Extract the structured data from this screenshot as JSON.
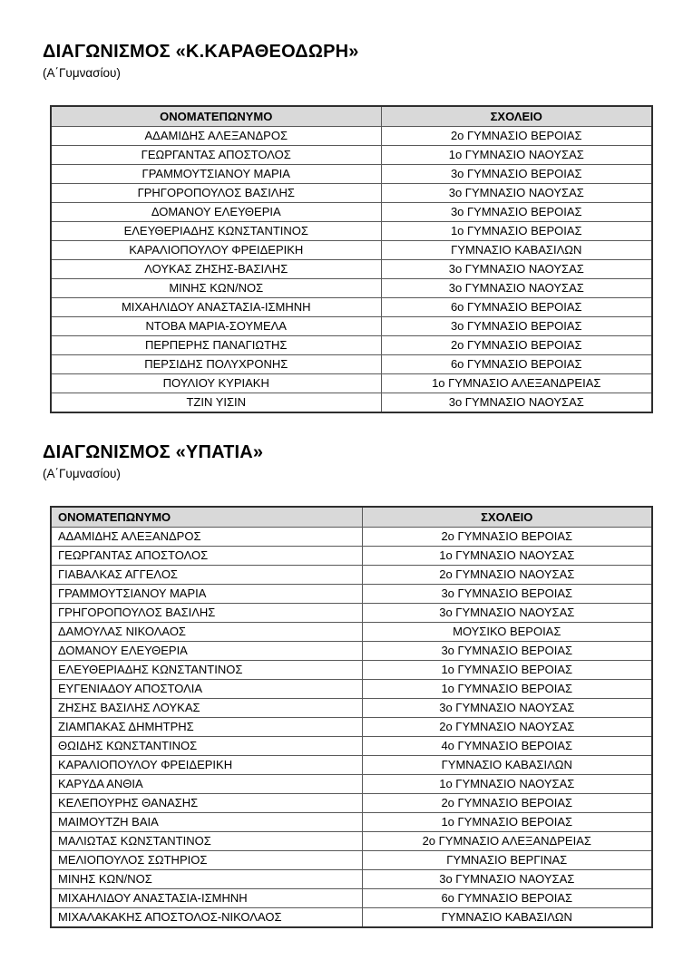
{
  "colors": {
    "header_bg": "#d9d9d9",
    "border": "#595959",
    "outer_border": "#2e2e2e",
    "page_bg": "#ffffff",
    "text": "#000000"
  },
  "sections": [
    {
      "title": "ΔΙΑΓΩΝΙΣΜΟΣ «Κ.ΚΑΡΑΘΕΟΔΩΡΗ»",
      "subtitle": "(Α΄Γυμνασίου)",
      "table": {
        "headers": [
          "ΟΝΟΜΑΤΕΠΩΝΥΜΟ",
          "ΣΧΟΛΕΙΟ"
        ],
        "rows": [
          [
            "ΑΔΑΜΙΔΗΣ ΑΛΕΞΑΝΔΡΟΣ",
            "2ο ΓΥΜΝΑΣΙΟ ΒΕΡΟΙΑΣ"
          ],
          [
            "ΓΕΩΡΓΑΝΤΑΣ ΑΠΟΣΤΟΛΟΣ",
            "1ο ΓΥΜΝΑΣΙΟ ΝΑΟΥΣΑΣ"
          ],
          [
            "ΓΡΑΜΜΟΥΤΣΙΑΝΟΥ ΜΑΡΙΑ",
            "3ο ΓΥΜΝΑΣΙΟ ΒΕΡΟΙΑΣ"
          ],
          [
            "ΓΡΗΓΟΡΟΠΟΥΛΟΣ ΒΑΣΙΛΗΣ",
            "3ο ΓΥΜΝΑΣΙΟ ΝΑΟΥΣΑΣ"
          ],
          [
            "ΔΟΜΑΝΟΥ ΕΛΕΥΘΕΡΙΑ",
            "3ο ΓΥΜΝΑΣΙΟ ΒΕΡΟΙΑΣ"
          ],
          [
            "ΕΛΕΥΘΕΡΙΑΔΗΣ ΚΩΝΣΤΑΝΤΙΝΟΣ",
            "1ο ΓΥΜΝΑΣΙΟ ΒΕΡΟΙΑΣ"
          ],
          [
            "ΚΑΡΑΛΙΟΠΟΥΛΟΥ ΦΡΕΙΔΕΡΙΚΗ",
            "ΓΥΜΝΑΣΙΟ ΚΑΒΑΣΙΛΩΝ"
          ],
          [
            "ΛΟΥΚΑΣ ΖΗΣΗΣ-ΒΑΣΙΛΗΣ",
            "3ο ΓΥΜΝΑΣΙΟ ΝΑΟΥΣΑΣ"
          ],
          [
            "ΜΙΝΗΣ ΚΩΝ/ΝΟΣ",
            "3ο ΓΥΜΝΑΣΙΟ ΝΑΟΥΣΑΣ"
          ],
          [
            "ΜΙΧΑΗΛΙΔΟΥ ΑΝΑΣΤΑΣΙΑ-ΙΣΜΗΝΗ",
            "6ο ΓΥΜΝΑΣΙΟ ΒΕΡΟΙΑΣ"
          ],
          [
            "ΝΤΟΒΑ ΜΑΡΙΑ-ΣΟΥΜΕΛΑ",
            "3ο ΓΥΜΝΑΣΙΟ ΒΕΡΟΙΑΣ"
          ],
          [
            "ΠΕΡΠΕΡΗΣ ΠΑΝΑΓΙΩΤΗΣ",
            "2ο ΓΥΜΝΑΣΙΟ ΒΕΡΟΙΑΣ"
          ],
          [
            "ΠΕΡΣΙΔΗΣ ΠΟΛΥΧΡΟΝΗΣ",
            "6ο ΓΥΜΝΑΣΙΟ ΒΕΡΟΙΑΣ"
          ],
          [
            "ΠΟΥΛΙΟΥ ΚΥΡΙΑΚΗ",
            "1ο ΓΥΜΝΑΣΙΟ ΑΛΕΞΑΝΔΡΕΙΑΣ"
          ],
          [
            "ΤΖΙΝ ΥΙΣΙΝ",
            "3ο ΓΥΜΝΑΣΙΟ ΝΑΟΥΣΑΣ"
          ]
        ]
      }
    },
    {
      "title": "ΔΙΑΓΩΝΙΣΜΟΣ «ΥΠΑΤΙΑ»",
      "subtitle": "(Α΄Γυμνασίου)",
      "table": {
        "headers": [
          "ΟΝΟΜΑΤΕΠΩΝΥΜΟ",
          "ΣΧΟΛΕΙΟ"
        ],
        "rows": [
          [
            "ΑΔΑΜΙΔΗΣ ΑΛΕΞΑΝΔΡΟΣ",
            "2ο ΓΥΜΝΑΣΙΟ ΒΕΡΟΙΑΣ"
          ],
          [
            "ΓΕΩΡΓΑΝΤΑΣ ΑΠΟΣΤΟΛΟΣ",
            "1ο ΓΥΜΝΑΣΙΟ ΝΑΟΥΣΑΣ"
          ],
          [
            "ΓΙΑΒΑΛΚΑΣ ΑΓΓΕΛΟΣ",
            "2ο ΓΥΜΝΑΣΙΟ ΝΑΟΥΣΑΣ"
          ],
          [
            "ΓΡΑΜΜΟΥΤΣΙΑΝΟΥ ΜΑΡΙΑ",
            "3ο ΓΥΜΝΑΣΙΟ ΒΕΡΟΙΑΣ"
          ],
          [
            "ΓΡΗΓΟΡΟΠΟΥΛΟΣ ΒΑΣΙΛΗΣ",
            "3ο ΓΥΜΝΑΣΙΟ ΝΑΟΥΣΑΣ"
          ],
          [
            "ΔΑΜΟΥΛΑΣ ΝΙΚΟΛΑΟΣ",
            "ΜΟΥΣΙΚΟ ΒΕΡΟΙΑΣ"
          ],
          [
            "ΔΟΜΑΝΟΥ ΕΛΕΥΘΕΡΙΑ",
            "3ο ΓΥΜΝΑΣΙΟ ΒΕΡΟΙΑΣ"
          ],
          [
            "ΕΛΕΥΘΕΡΙΑΔΗΣ ΚΩΝΣΤΑΝΤΙΝΟΣ",
            "1ο ΓΥΜΝΑΣΙΟ ΒΕΡΟΙΑΣ"
          ],
          [
            "ΕΥΓΕΝΙΑΔΟΥ ΑΠΟΣΤΟΛΙΑ",
            "1ο ΓΥΜΝΑΣΙΟ ΒΕΡΟΙΑΣ"
          ],
          [
            "ΖΗΣΗΣ ΒΑΣΙΛΗΣ ΛΟΥΚΑΣ",
            "3ο ΓΥΜΝΑΣΙΟ ΝΑΟΥΣΑΣ"
          ],
          [
            "ΖΙΑΜΠΑΚΑΣ ΔΗΜΗΤΡΗΣ",
            "2ο ΓΥΜΝΑΣΙΟ ΝΑΟΥΣΑΣ"
          ],
          [
            "ΘΩΙΔΗΣ ΚΩΝΣΤΑΝΤΙΝΟΣ",
            "4ο ΓΥΜΝΑΣΙΟ ΒΕΡΟΙΑΣ"
          ],
          [
            "ΚΑΡΑΛΙΟΠΟΥΛΟΥ ΦΡΕΙΔΕΡΙΚΗ",
            "ΓΥΜΝΑΣΙΟ ΚΑΒΑΣΙΛΩΝ"
          ],
          [
            "ΚΑΡΥΔΑ ΑΝΘΙΑ",
            "1ο ΓΥΜΝΑΣΙΟ ΝΑΟΥΣΑΣ"
          ],
          [
            "ΚΕΛΕΠΟΥΡΗΣ ΘΑΝΑΣΗΣ",
            "2ο ΓΥΜΝΑΣΙΟ ΒΕΡΟΙΑΣ"
          ],
          [
            "ΜΑΙΜΟΥΤΖΗ ΒΑΙΑ",
            "1ο ΓΥΜΝΑΣΙΟ ΒΕΡΟΙΑΣ"
          ],
          [
            "ΜΑΛΙΩΤΑΣ ΚΩΝΣΤΑΝΤΙΝΟΣ",
            "2ο ΓΥΜΝΑΣΙΟ ΑΛΕΞΑΝΔΡΕΙΑΣ"
          ],
          [
            "ΜΕΛΙΟΠΟΥΛΟΣ ΣΩΤΗΡΙΟΣ",
            "ΓΥΜΝΑΣΙΟ ΒΕΡΓΙΝΑΣ"
          ],
          [
            "ΜΙΝΗΣ ΚΩΝ/ΝΟΣ",
            "3ο ΓΥΜΝΑΣΙΟ ΝΑΟΥΣΑΣ"
          ],
          [
            "ΜΙΧΑΗΛΙΔΟΥ ΑΝΑΣΤΑΣΙΑ-ΙΣΜΗΝΗ",
            "6ο ΓΥΜΝΑΣΙΟ ΒΕΡΟΙΑΣ"
          ],
          [
            "ΜΙΧΑΛΑΚΑΚΗΣ ΑΠΟΣΤΟΛΟΣ-ΝΙΚΟΛΑΟΣ",
            "ΓΥΜΝΑΣΙΟ ΚΑΒΑΣΙΛΩΝ"
          ]
        ]
      }
    }
  ]
}
